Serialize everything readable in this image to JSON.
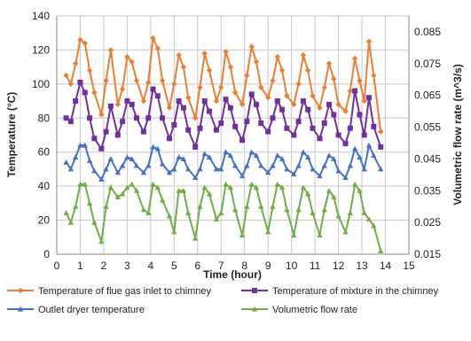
{
  "chart_data": {
    "type": "line",
    "xlabel": "Time (hour)",
    "ylabel": "Temperature (°C)",
    "y2label": "Volumetric flow rate (m^3/s)",
    "xlim": [
      0,
      15
    ],
    "ylim": [
      0,
      140
    ],
    "y2lim": [
      0.015,
      0.09
    ],
    "xticks": [
      "0",
      "1",
      "2",
      "3",
      "4",
      "5",
      "6",
      "7",
      "8",
      "9",
      "10",
      "11",
      "12",
      "13",
      "14",
      "15"
    ],
    "yticks": [
      "0",
      "20",
      "40",
      "60",
      "80",
      "100",
      "120",
      "140"
    ],
    "y2ticks": [
      "0.015",
      "0.025",
      "0.035",
      "0.045",
      "0.055",
      "0.065",
      "0.075",
      "0.085"
    ],
    "grid": true,
    "legend_position": "bottom",
    "series": [
      {
        "name": "Temperature of flue gas inlet to chimney",
        "color": "#ed7d31",
        "marker": "diamond",
        "axis": "left",
        "x": [
          0.4,
          0.6,
          0.8,
          1.0,
          1.2,
          1.4,
          1.6,
          1.9,
          2.1,
          2.3,
          2.6,
          2.8,
          3.0,
          3.2,
          3.4,
          3.7,
          3.9,
          4.1,
          4.3,
          4.5,
          4.8,
          5.0,
          5.2,
          5.4,
          5.6,
          5.9,
          6.1,
          6.3,
          6.5,
          6.8,
          7.0,
          7.2,
          7.4,
          7.6,
          7.9,
          8.1,
          8.3,
          8.5,
          8.7,
          9.0,
          9.2,
          9.4,
          9.6,
          9.8,
          10.1,
          10.3,
          10.5,
          10.7,
          10.9,
          11.2,
          11.4,
          11.6,
          11.8,
          12.0,
          12.3,
          12.5,
          12.7,
          12.9,
          13.1,
          13.3,
          13.5,
          13.8
        ],
        "values": [
          105,
          100,
          112,
          126,
          124,
          108,
          95,
          82,
          102,
          120,
          88,
          97,
          116,
          113,
          102,
          90,
          101,
          127,
          121,
          102,
          86,
          100,
          117,
          110,
          92,
          80,
          98,
          118,
          108,
          90,
          98,
          119,
          110,
          95,
          88,
          105,
          122,
          113,
          98,
          92,
          102,
          116,
          108,
          93,
          88,
          100,
          117,
          108,
          93,
          86,
          98,
          112,
          103,
          88,
          84,
          96,
          115,
          102,
          90,
          125,
          105,
          72
        ]
      },
      {
        "name": "Temperature of mixture in the chimney",
        "color": "#7030a0",
        "marker": "square",
        "axis": "left",
        "x": [
          0.4,
          0.6,
          0.8,
          1.0,
          1.2,
          1.4,
          1.6,
          1.9,
          2.1,
          2.3,
          2.6,
          2.8,
          3.0,
          3.2,
          3.4,
          3.7,
          3.9,
          4.1,
          4.3,
          4.5,
          4.8,
          5.0,
          5.2,
          5.4,
          5.6,
          5.9,
          6.1,
          6.3,
          6.5,
          6.8,
          7.0,
          7.2,
          7.4,
          7.6,
          7.9,
          8.1,
          8.3,
          8.5,
          8.7,
          9.0,
          9.2,
          9.4,
          9.6,
          9.8,
          10.1,
          10.3,
          10.5,
          10.7,
          10.9,
          11.2,
          11.4,
          11.6,
          11.8,
          12.0,
          12.3,
          12.5,
          12.7,
          12.9,
          13.1,
          13.3,
          13.5,
          13.8
        ],
        "values": [
          80,
          78,
          90,
          101,
          95,
          80,
          68,
          62,
          72,
          87,
          70,
          78,
          90,
          88,
          80,
          72,
          80,
          97,
          93,
          80,
          68,
          76,
          90,
          86,
          73,
          63,
          74,
          90,
          84,
          73,
          77,
          91,
          86,
          75,
          67,
          78,
          94,
          88,
          77,
          72,
          80,
          90,
          85,
          74,
          70,
          78,
          90,
          85,
          74,
          68,
          77,
          88,
          82,
          70,
          65,
          74,
          96,
          82,
          70,
          92,
          75,
          63
        ]
      },
      {
        "name": "Outlet dryer temperature",
        "color": "#4472c4",
        "marker": "triangle",
        "axis": "left",
        "x": [
          0.4,
          0.6,
          0.8,
          1.0,
          1.2,
          1.4,
          1.6,
          1.9,
          2.1,
          2.3,
          2.6,
          2.8,
          3.0,
          3.2,
          3.4,
          3.7,
          3.9,
          4.1,
          4.3,
          4.5,
          4.8,
          5.0,
          5.2,
          5.4,
          5.6,
          5.9,
          6.1,
          6.3,
          6.5,
          6.8,
          7.0,
          7.2,
          7.4,
          7.6,
          7.9,
          8.1,
          8.3,
          8.5,
          8.7,
          9.0,
          9.2,
          9.4,
          9.6,
          9.8,
          10.1,
          10.3,
          10.5,
          10.7,
          10.9,
          11.2,
          11.4,
          11.6,
          11.8,
          12.0,
          12.3,
          12.5,
          12.7,
          12.9,
          13.1,
          13.3,
          13.5,
          13.8
        ],
        "values": [
          54,
          50,
          57,
          64,
          64,
          55,
          49,
          44,
          50,
          56,
          48,
          52,
          57,
          56,
          52,
          48,
          52,
          63,
          62,
          53,
          48,
          50,
          57,
          56,
          50,
          45,
          50,
          59,
          57,
          50,
          50,
          60,
          58,
          52,
          46,
          52,
          60,
          58,
          52,
          48,
          52,
          58,
          56,
          50,
          47,
          52,
          60,
          57,
          50,
          46,
          52,
          58,
          56,
          49,
          45,
          52,
          62,
          57,
          50,
          64,
          58,
          50
        ]
      },
      {
        "name": "Volumetric flow rate",
        "color": "#70ad47",
        "marker": "triangle",
        "axis": "right",
        "x": [
          0.4,
          0.6,
          0.8,
          1.0,
          1.2,
          1.4,
          1.6,
          1.9,
          2.1,
          2.3,
          2.6,
          2.8,
          3.0,
          3.2,
          3.4,
          3.7,
          3.9,
          4.1,
          4.3,
          4.5,
          4.8,
          5.0,
          5.2,
          5.4,
          5.6,
          5.9,
          6.1,
          6.3,
          6.5,
          6.8,
          7.0,
          7.2,
          7.4,
          7.6,
          7.9,
          8.1,
          8.3,
          8.5,
          8.7,
          9.0,
          9.2,
          9.4,
          9.6,
          9.8,
          10.1,
          10.3,
          10.5,
          10.7,
          10.9,
          11.2,
          11.4,
          11.6,
          11.8,
          12.0,
          12.3,
          12.5,
          12.7,
          12.9,
          13.1,
          13.3,
          13.5,
          13.8
        ],
        "values": [
          0.028,
          0.025,
          0.03,
          0.037,
          0.037,
          0.031,
          0.025,
          0.019,
          0.03,
          0.036,
          0.033,
          0.034,
          0.036,
          0.037,
          0.035,
          0.029,
          0.028,
          0.037,
          0.036,
          0.032,
          0.027,
          0.022,
          0.035,
          0.035,
          0.028,
          0.02,
          0.03,
          0.036,
          0.034,
          0.026,
          0.028,
          0.037,
          0.036,
          0.029,
          0.021,
          0.03,
          0.037,
          0.036,
          0.03,
          0.022,
          0.03,
          0.037,
          0.036,
          0.029,
          0.021,
          0.029,
          0.036,
          0.034,
          0.028,
          0.021,
          0.029,
          0.035,
          0.033,
          0.027,
          0.022,
          0.028,
          0.037,
          0.035,
          0.028,
          0.026,
          0.024,
          0.016
        ]
      }
    ]
  }
}
